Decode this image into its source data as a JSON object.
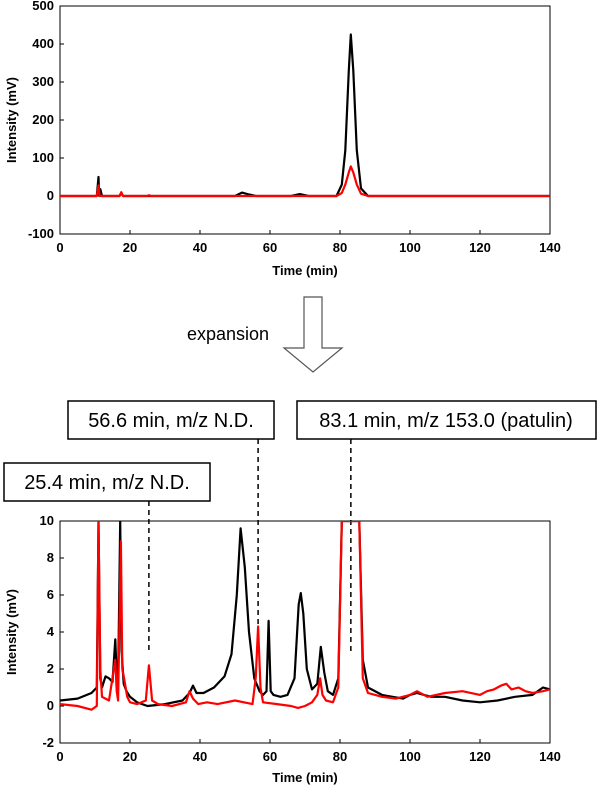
{
  "top_chart": {
    "xlabel": "Time (min)",
    "ylabel": "Intensity (mV)"
  },
  "bottom_chart": {
    "xlabel": "Time (min)",
    "ylabel": "Intensity (mV)"
  },
  "expansion_label": "expansion",
  "callouts": [
    {
      "text": "25.4 min, m/z N.D.",
      "time": 25.4
    },
    {
      "text": "56.6 min, m/z N.D.",
      "time": 56.6
    },
    {
      "text": "83.1 min, m/z 153.0 (patulin)",
      "time": 83.1
    }
  ],
  "chart_data": [
    {
      "type": "line",
      "xlabel": "Time (min)",
      "ylabel": "Intensity (mV)",
      "xlim": [
        0,
        140
      ],
      "ylim": [
        -100,
        500
      ],
      "xticks": [
        0,
        20,
        40,
        60,
        80,
        100,
        120,
        140
      ],
      "yticks": [
        -100,
        0,
        100,
        200,
        300,
        400,
        500
      ],
      "grid": false,
      "series": [
        {
          "color": "#000000",
          "x": [
            0,
            10.5,
            11,
            11.2,
            11.5,
            12,
            17,
            17.5,
            18,
            25,
            50,
            52,
            54,
            56,
            66,
            68.5,
            71,
            79,
            80.5,
            81.5,
            82.5,
            83.1,
            83.8,
            84.8,
            86,
            88,
            100,
            140
          ],
          "y": [
            0,
            0,
            50,
            0,
            18,
            0,
            0,
            8,
            0,
            0,
            0,
            9,
            4,
            0,
            0,
            5,
            0,
            0,
            30,
            120,
            330,
            425,
            330,
            120,
            20,
            0,
            0,
            0
          ]
        },
        {
          "color": "#ff0000",
          "x": [
            0,
            10.5,
            11,
            11.3,
            12,
            17,
            17.5,
            18,
            25,
            25.4,
            26,
            79,
            80.5,
            81.5,
            82.5,
            83.1,
            83.8,
            84.8,
            86,
            88,
            100,
            140
          ],
          "y": [
            0,
            0,
            28,
            0,
            0,
            0,
            10,
            0,
            0,
            2,
            0,
            0,
            8,
            30,
            62,
            78,
            62,
            30,
            6,
            0,
            0,
            0
          ]
        }
      ]
    },
    {
      "type": "line",
      "xlabel": "Time (min)",
      "ylabel": "Intensity (mV)",
      "xlim": [
        0,
        140
      ],
      "ylim": [
        -2,
        10
      ],
      "xticks": [
        0,
        20,
        40,
        60,
        80,
        100,
        120,
        140
      ],
      "yticks": [
        -2,
        0,
        2,
        4,
        6,
        8,
        10
      ],
      "grid": false,
      "series": [
        {
          "color": "#000000",
          "x": [
            0,
            5,
            9,
            10.5,
            11,
            11.5,
            12,
            13,
            14,
            15,
            15.8,
            16.2,
            16.6,
            17.2,
            17.6,
            18.2,
            19,
            20,
            22,
            25,
            30,
            35,
            37,
            38,
            39,
            41,
            44,
            47,
            49,
            50.5,
            51.6,
            52.8,
            54,
            55.5,
            57,
            58,
            59,
            59.6,
            60.2,
            61,
            63,
            65,
            67,
            68.2,
            68.8,
            69.5,
            70.5,
            72,
            73.5,
            74.5,
            75.5,
            76.5,
            78,
            79.5,
            80.5,
            85.5,
            86.5,
            88,
            92,
            95,
            98,
            100,
            102,
            104,
            106,
            110,
            115,
            120,
            125,
            130,
            135,
            138,
            140
          ],
          "y": [
            0.3,
            0.4,
            0.7,
            1.0,
            10,
            1.5,
            1.0,
            1.6,
            1.5,
            1.3,
            3.6,
            1.6,
            1.2,
            10,
            3.0,
            1.2,
            0.8,
            0.5,
            0.2,
            0.0,
            0.1,
            0.3,
            0.7,
            1.1,
            0.7,
            0.7,
            1.0,
            1.6,
            2.8,
            6.0,
            9.6,
            7.5,
            4.0,
            1.5,
            0.8,
            0.6,
            0.8,
            4.6,
            0.8,
            0.6,
            0.5,
            0.6,
            1.5,
            5.5,
            6.1,
            5.0,
            2.0,
            0.9,
            1.2,
            3.2,
            1.8,
            0.8,
            0.6,
            1.5,
            10,
            10,
            2.5,
            1.0,
            0.6,
            0.5,
            0.4,
            0.6,
            0.7,
            0.6,
            0.5,
            0.5,
            0.3,
            0.2,
            0.3,
            0.5,
            0.6,
            1.0,
            0.9
          ]
        },
        {
          "color": "#ff0000",
          "x": [
            0,
            5,
            9,
            10.5,
            11,
            11.5,
            12,
            14,
            15.8,
            16.2,
            16.6,
            17.4,
            17.8,
            18.3,
            19.2,
            20,
            22,
            24.5,
            25.4,
            26.3,
            28,
            32,
            36,
            37,
            38,
            39.5,
            42,
            45,
            50,
            55,
            55.9,
            56.6,
            57.3,
            58,
            62,
            66,
            68,
            70,
            72,
            73.5,
            74.3,
            75,
            76,
            78,
            79.5,
            80.5,
            85.5,
            86.5,
            88,
            92,
            96,
            100,
            102,
            105,
            110,
            115,
            120,
            122,
            124,
            126,
            127.5,
            129,
            131,
            133,
            135,
            138,
            140
          ],
          "y": [
            0.1,
            0.0,
            -0.2,
            0.0,
            10,
            2.0,
            0.5,
            0.3,
            2.5,
            0.8,
            0.3,
            8.9,
            2.0,
            1.5,
            0.5,
            0.2,
            0.1,
            0.3,
            2.2,
            0.3,
            0.1,
            0.0,
            0.2,
            0.8,
            0.4,
            0.1,
            0.2,
            0.1,
            0.3,
            0.1,
            1.5,
            4.3,
            1.0,
            0.2,
            0.1,
            0.0,
            -0.1,
            0.0,
            0.2,
            0.6,
            1.5,
            0.6,
            0.3,
            0.2,
            1.0,
            10,
            10,
            1.5,
            0.7,
            0.5,
            0.4,
            0.6,
            0.8,
            0.5,
            0.7,
            0.8,
            0.6,
            0.8,
            0.9,
            1.1,
            1.2,
            0.9,
            1.0,
            0.8,
            0.7,
            0.8,
            0.9
          ]
        }
      ]
    }
  ]
}
